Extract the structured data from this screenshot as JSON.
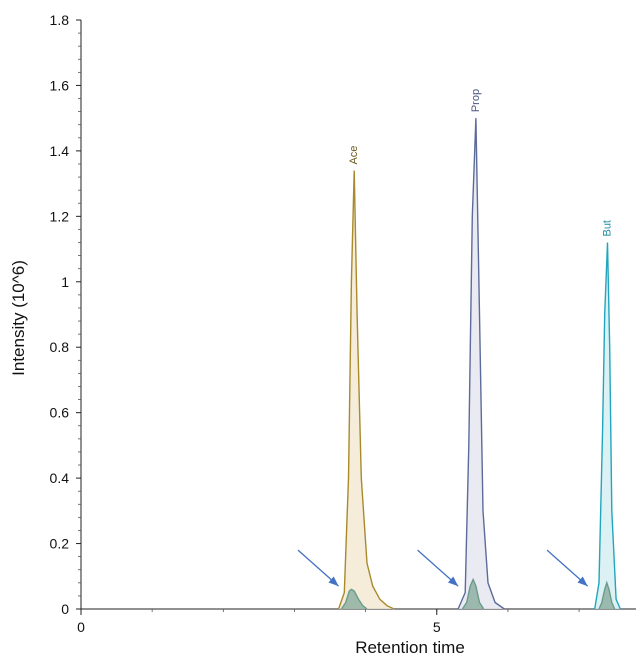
{
  "chart_data": {
    "type": "line",
    "title": "",
    "xlabel": "Retention time",
    "ylabel": "Intensity (10^6)",
    "xlim": [
      0,
      7.8
    ],
    "ylim": [
      0,
      1.8
    ],
    "x_ticks": [
      0,
      5
    ],
    "x_ticks_labels": [
      "0",
      "5"
    ],
    "y_ticks": [
      0,
      0.2,
      0.4,
      0.6,
      0.8,
      1,
      1.2,
      1.4,
      1.6,
      1.8
    ],
    "y_tick_labels": [
      "0",
      "0.2",
      "0.4",
      "0.6",
      "0.8",
      "1",
      "1.2",
      "1.4",
      "1.6",
      "1.8"
    ],
    "grid": false,
    "series": [
      {
        "name": "Ace",
        "color": "#a88a2c",
        "fill": "#f3e9d3",
        "x": [
          3.62,
          3.7,
          3.76,
          3.8,
          3.84,
          3.88,
          3.94,
          4.02,
          4.1,
          4.2,
          4.3,
          4.4
        ],
        "y": [
          0,
          0.05,
          0.4,
          1.0,
          1.34,
          0.9,
          0.4,
          0.14,
          0.07,
          0.03,
          0.01,
          0
        ]
      },
      {
        "name": "Prop",
        "color": "#5c6b9a",
        "fill": "#e6e6f1",
        "x": [
          5.3,
          5.4,
          5.45,
          5.5,
          5.55,
          5.6,
          5.65,
          5.72,
          5.82,
          5.95
        ],
        "y": [
          0,
          0.05,
          0.5,
          1.2,
          1.5,
          0.9,
          0.3,
          0.08,
          0.02,
          0
        ]
      },
      {
        "name": "But",
        "color": "#21a6bd",
        "fill": "#d6eef2",
        "x": [
          7.22,
          7.28,
          7.33,
          7.36,
          7.4,
          7.43,
          7.46,
          7.52,
          7.58
        ],
        "y": [
          0,
          0.08,
          0.55,
          0.9,
          1.12,
          0.8,
          0.3,
          0.03,
          0
        ]
      },
      {
        "name": "",
        "color": "#6a9c8a",
        "fill": "#8fb0a2",
        "x": [
          3.66,
          3.72,
          3.77,
          3.8,
          3.84,
          3.9,
          3.96,
          4.02
        ],
        "y": [
          0,
          0.02,
          0.055,
          0.06,
          0.055,
          0.03,
          0.01,
          0
        ]
      },
      {
        "name": "",
        "color": "#6a9c8a",
        "fill": "#8fb0a2",
        "x": [
          5.36,
          5.42,
          5.47,
          5.51,
          5.55,
          5.6,
          5.66
        ],
        "y": [
          0,
          0.02,
          0.07,
          0.09,
          0.07,
          0.02,
          0
        ]
      },
      {
        "name": "",
        "color": "#6a9c8a",
        "fill": "#8fb0a2",
        "x": [
          7.28,
          7.32,
          7.36,
          7.39,
          7.42,
          7.46,
          7.5
        ],
        "y": [
          0,
          0.02,
          0.06,
          0.08,
          0.06,
          0.02,
          0
        ]
      }
    ],
    "peak_labels": [
      {
        "text": "Ace",
        "x": 3.84,
        "y": 1.34,
        "color": "#6b5a1f"
      },
      {
        "text": "Prop",
        "x": 5.55,
        "y": 1.5,
        "color": "#4a5583"
      },
      {
        "text": "But",
        "x": 7.4,
        "y": 1.12,
        "color": "#1e8ea2"
      }
    ],
    "annotations": [
      {
        "type": "arrow",
        "color": "#4472c4",
        "from": [
          3.05,
          0.18
        ],
        "to": [
          3.62,
          0.07
        ]
      },
      {
        "type": "arrow",
        "color": "#4472c4",
        "from": [
          4.73,
          0.18
        ],
        "to": [
          5.3,
          0.07
        ]
      },
      {
        "type": "arrow",
        "color": "#4472c4",
        "from": [
          6.55,
          0.18
        ],
        "to": [
          7.12,
          0.07
        ]
      }
    ]
  }
}
